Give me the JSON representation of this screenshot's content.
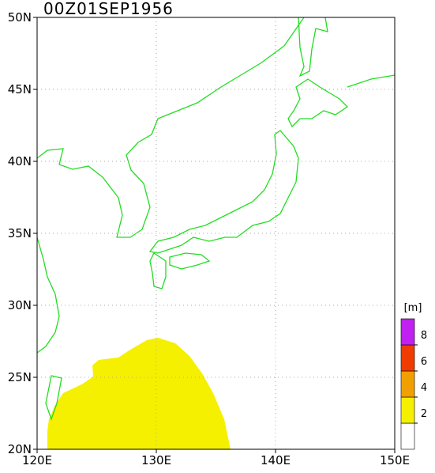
{
  "chart_data": {
    "type": "map",
    "title": "00Z01SEP1956",
    "xlim": [
      120,
      150
    ],
    "xticks": [
      {
        "value": 120,
        "label": "120E"
      },
      {
        "value": 130,
        "label": "130E"
      },
      {
        "value": 140,
        "label": "140E"
      },
      {
        "value": 150,
        "label": "150E"
      }
    ],
    "ylim": [
      20,
      50
    ],
    "yticks": [
      {
        "value": 20,
        "label": "20N"
      },
      {
        "value": 25,
        "label": "25N"
      },
      {
        "value": 30,
        "label": "30N"
      },
      {
        "value": 35,
        "label": "35N"
      },
      {
        "value": 40,
        "label": "40N"
      },
      {
        "value": 45,
        "label": "45N"
      },
      {
        "value": 50,
        "label": "50N"
      }
    ],
    "grid": true,
    "colorbar": {
      "label": "[m]",
      "lim": [
        0,
        10
      ],
      "levels": [
        0,
        2,
        4,
        6,
        8,
        10
      ],
      "colors": [
        "#ffffff",
        "#f5f000",
        "#f0a000",
        "#f03c00",
        "#c020f0"
      ],
      "ticks": [
        2,
        4,
        6,
        8
      ]
    }
  }
}
